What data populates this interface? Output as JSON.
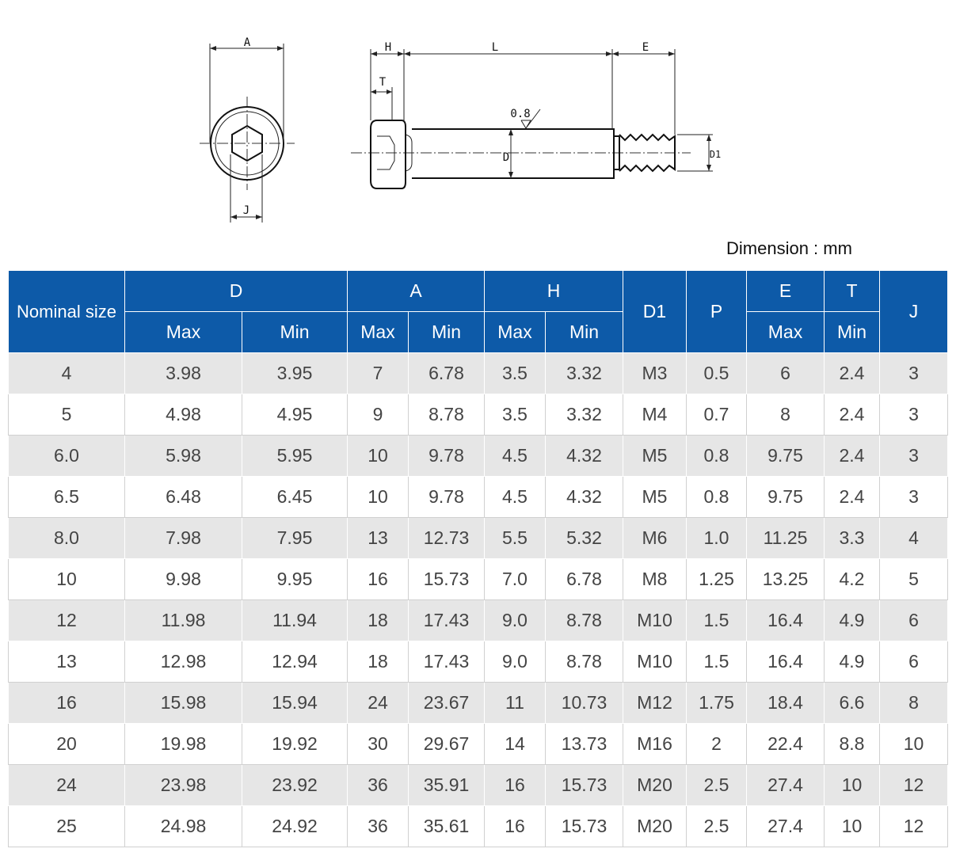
{
  "drawing": {
    "labels": {
      "A": "A",
      "J": "J",
      "H": "H",
      "T": "T",
      "L": "L",
      "E": "E",
      "roughness": "0.8",
      "D": "D",
      "D1": "D1"
    }
  },
  "unit_note": "Dimension : mm",
  "table": {
    "header_top": [
      "Nominal size",
      "D",
      "A",
      "H",
      "D1",
      "P",
      "E",
      "T",
      "J"
    ],
    "header_sub": [
      "Max",
      "Min",
      "Max",
      "Min",
      "Max",
      "Min",
      "Max",
      "Min"
    ],
    "rows": [
      [
        "4",
        "3.98",
        "3.95",
        "7",
        "6.78",
        "3.5",
        "3.32",
        "M3",
        "0.5",
        "6",
        "2.4",
        "3"
      ],
      [
        "5",
        "4.98",
        "4.95",
        "9",
        "8.78",
        "3.5",
        "3.32",
        "M4",
        "0.7",
        "8",
        "2.4",
        "3"
      ],
      [
        "6.0",
        "5.98",
        "5.95",
        "10",
        "9.78",
        "4.5",
        "4.32",
        "M5",
        "0.8",
        "9.75",
        "2.4",
        "3"
      ],
      [
        "6.5",
        "6.48",
        "6.45",
        "10",
        "9.78",
        "4.5",
        "4.32",
        "M5",
        "0.8",
        "9.75",
        "2.4",
        "3"
      ],
      [
        "8.0",
        "7.98",
        "7.95",
        "13",
        "12.73",
        "5.5",
        "5.32",
        "M6",
        "1.0",
        "11.25",
        "3.3",
        "4"
      ],
      [
        "10",
        "9.98",
        "9.95",
        "16",
        "15.73",
        "7.0",
        "6.78",
        "M8",
        "1.25",
        "13.25",
        "4.2",
        "5"
      ],
      [
        "12",
        "11.98",
        "11.94",
        "18",
        "17.43",
        "9.0",
        "8.78",
        "M10",
        "1.5",
        "16.4",
        "4.9",
        "6"
      ],
      [
        "13",
        "12.98",
        "12.94",
        "18",
        "17.43",
        "9.0",
        "8.78",
        "M10",
        "1.5",
        "16.4",
        "4.9",
        "6"
      ],
      [
        "16",
        "15.98",
        "15.94",
        "24",
        "23.67",
        "11",
        "10.73",
        "M12",
        "1.75",
        "18.4",
        "6.6",
        "8"
      ],
      [
        "20",
        "19.98",
        "19.92",
        "30",
        "29.67",
        "14",
        "13.73",
        "M16",
        "2",
        "22.4",
        "8.8",
        "10"
      ],
      [
        "24",
        "23.98",
        "23.92",
        "36",
        "35.91",
        "16",
        "15.73",
        "M20",
        "2.5",
        "27.4",
        "10",
        "12"
      ],
      [
        "25",
        "24.98",
        "24.92",
        "36",
        "35.61",
        "16",
        "15.73",
        "M20",
        "2.5",
        "27.4",
        "10",
        "12"
      ]
    ]
  }
}
